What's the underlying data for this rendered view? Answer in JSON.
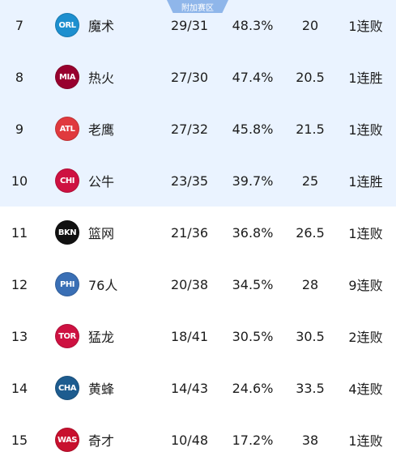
{
  "badge": "附加赛区",
  "colors": {
    "playin_row_bg": "#eaf3ff",
    "badge_bg": "#8fb6ea"
  },
  "rows": [
    {
      "rank": "7",
      "abbr": "ORL",
      "logo_color": "#1d8fcf",
      "name": "魔术",
      "record": "29/31",
      "pct": "48.3%",
      "gb": "20",
      "streak": "1连败",
      "playin": true
    },
    {
      "rank": "8",
      "abbr": "MIA",
      "logo_color": "#98002e",
      "name": "热火",
      "record": "27/30",
      "pct": "47.4%",
      "gb": "20.5",
      "streak": "1连胜",
      "playin": true
    },
    {
      "rank": "9",
      "abbr": "ATL",
      "logo_color": "#e03a3e",
      "name": "老鹰",
      "record": "27/32",
      "pct": "45.8%",
      "gb": "21.5",
      "streak": "1连败",
      "playin": true
    },
    {
      "rank": "10",
      "abbr": "CHI",
      "logo_color": "#ce1141",
      "name": "公牛",
      "record": "23/35",
      "pct": "39.7%",
      "gb": "25",
      "streak": "1连胜",
      "playin": true
    },
    {
      "rank": "11",
      "abbr": "BKN",
      "logo_color": "#111111",
      "name": "篮网",
      "record": "21/36",
      "pct": "36.8%",
      "gb": "26.5",
      "streak": "1连败",
      "playin": false
    },
    {
      "rank": "12",
      "abbr": "PHI",
      "logo_color": "#3a6fb5",
      "name": "76人",
      "record": "20/38",
      "pct": "34.5%",
      "gb": "28",
      "streak": "9连败",
      "playin": false
    },
    {
      "rank": "13",
      "abbr": "TOR",
      "logo_color": "#ce1141",
      "name": "猛龙",
      "record": "18/41",
      "pct": "30.5%",
      "gb": "30.5",
      "streak": "2连败",
      "playin": false
    },
    {
      "rank": "14",
      "abbr": "CHA",
      "logo_color": "#1d5c8f",
      "name": "黄蜂",
      "record": "14/43",
      "pct": "24.6%",
      "gb": "33.5",
      "streak": "4连败",
      "playin": false
    },
    {
      "rank": "15",
      "abbr": "WAS",
      "logo_color": "#c8102e",
      "name": "奇才",
      "record": "10/48",
      "pct": "17.2%",
      "gb": "38",
      "streak": "1连败",
      "playin": false
    }
  ]
}
